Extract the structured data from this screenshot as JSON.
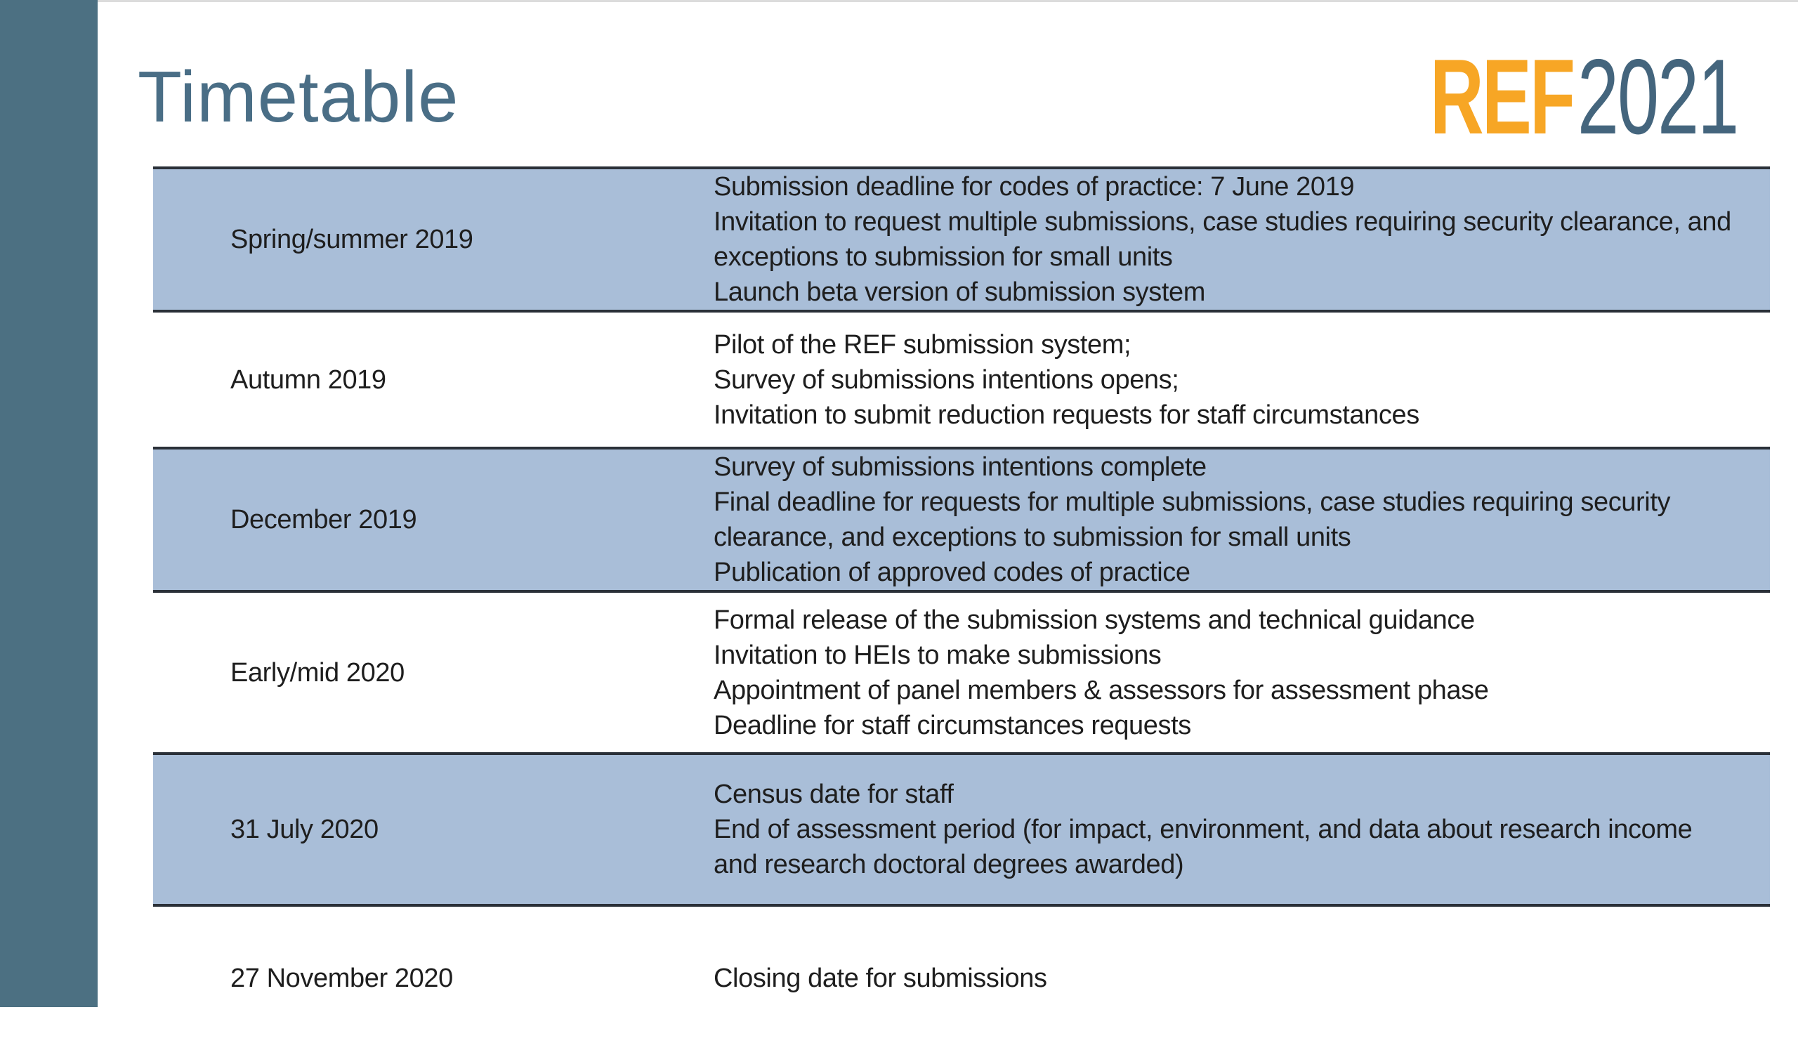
{
  "slide": {
    "title": "Timetable",
    "logo": {
      "ref": "REF",
      "year": "2021"
    }
  },
  "colors": {
    "sidebar": "#4C7082",
    "title": "#4A6E86",
    "logo_ref": "#F7A625",
    "logo_year": "#44657D",
    "row_highlight": "#A9BED8",
    "row_plain": "#FFFFFF",
    "border": "#2A3038",
    "text": "#1E1E1E"
  },
  "table": {
    "rows": [
      {
        "date": "Spring/summer 2019",
        "highlighted": true,
        "items": [
          "Submission deadline for codes of practice: 7 June 2019",
          "Invitation to request multiple submissions, case studies requiring security clearance, and exceptions to submission for small units",
          "Launch beta version of submission system"
        ]
      },
      {
        "date": "Autumn 2019",
        "highlighted": false,
        "items": [
          "Pilot of the REF submission system;",
          "Survey of submissions intentions opens;",
          "Invitation to submit reduction requests for staff circumstances"
        ]
      },
      {
        "date": "December 2019",
        "highlighted": true,
        "items": [
          "Survey of submissions intentions complete",
          "Final deadline for requests for multiple submissions, case studies requiring security clearance, and exceptions to submission for small units",
          "Publication of approved codes of practice"
        ]
      },
      {
        "date": "Early/mid 2020",
        "highlighted": false,
        "items": [
          "Formal release of the submission systems and technical guidance",
          "Invitation to HEIs to make submissions",
          "Appointment of panel members & assessors for assessment phase",
          "Deadline for staff circumstances requests"
        ]
      },
      {
        "date": "31 July 2020",
        "highlighted": true,
        "items": [
          "Census date for staff",
          "End of assessment period (for impact, environment, and data about research income and research doctoral degrees awarded)"
        ]
      },
      {
        "date": "27 November 2020",
        "highlighted": false,
        "items": [
          "Closing date for submissions"
        ]
      }
    ]
  }
}
